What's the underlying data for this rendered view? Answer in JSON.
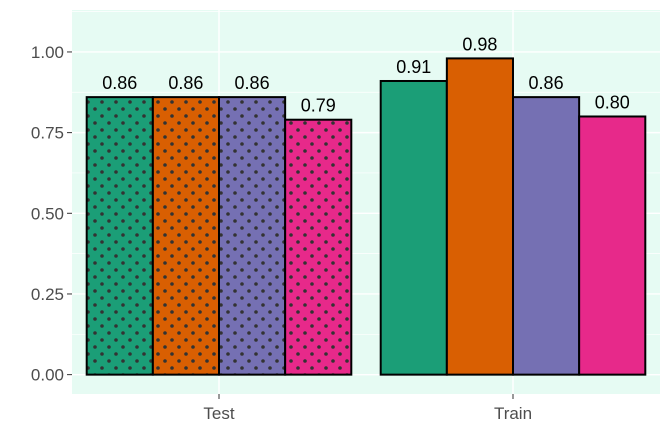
{
  "chart_data": {
    "type": "bar",
    "title": "",
    "xlabel": "",
    "ylabel": "",
    "categories": [
      "Test",
      "Train"
    ],
    "ylim": [
      -0.06,
      1.13
    ],
    "yticks": [
      "0.00",
      "0.25",
      "0.50",
      "0.75",
      "1.00"
    ],
    "grid": true,
    "legend": "none",
    "background": "#e6fbf3",
    "series_colors": [
      "#1b9e77",
      "#d95f02",
      "#7570b3",
      "#e7298a"
    ],
    "pattern": {
      "Test": "dots",
      "Train": "none"
    },
    "values": {
      "Test": [
        0.86,
        0.86,
        0.86,
        0.79
      ],
      "Train": [
        0.91,
        0.98,
        0.86,
        0.8
      ]
    },
    "labels": {
      "Test": [
        "0.86",
        "0.86",
        "0.86",
        "0.79"
      ],
      "Train": [
        "0.91",
        "0.98",
        "0.86",
        "0.80"
      ]
    }
  }
}
